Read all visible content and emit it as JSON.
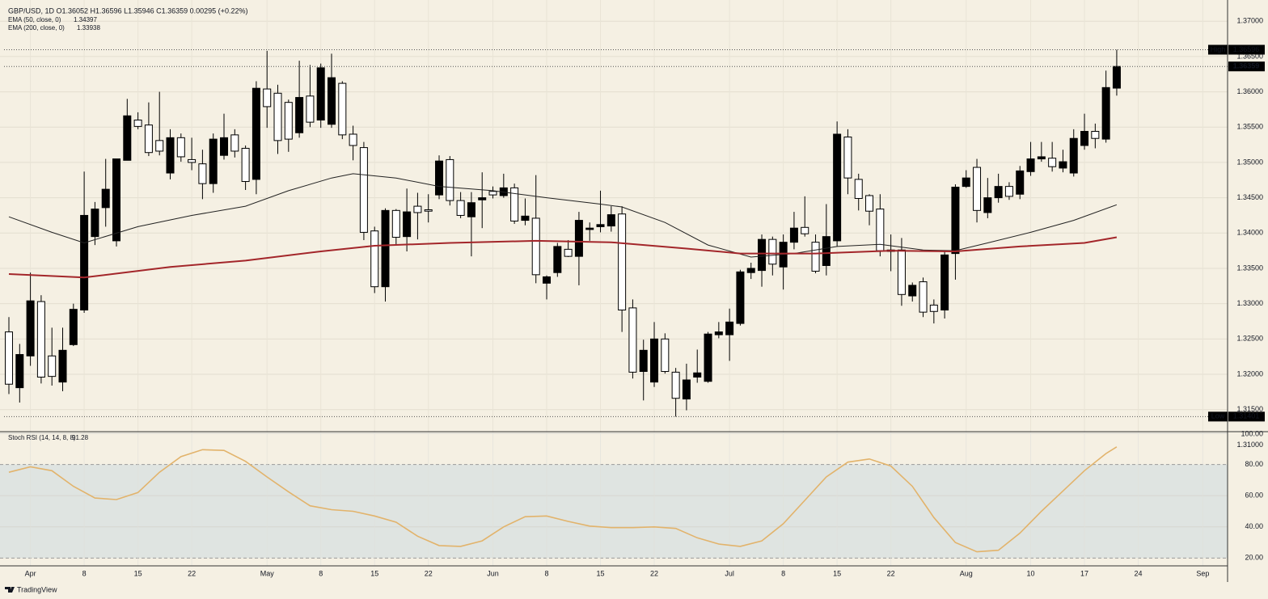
{
  "chart_data": {
    "type": "candlestick",
    "header": "GBP/USD, 1D  O1.36052  H1.36596  L1.35946  C1.36359  0.00295 (+0.22%)",
    "up_color": "#000000",
    "down_color": "#ffffff",
    "categories": [
      null,
      null,
      "Apr",
      null,
      null,
      null,
      null,
      "8",
      null,
      null,
      null,
      null,
      "15",
      null,
      null,
      null,
      null,
      "22",
      null,
      null,
      null,
      null,
      null,
      null,
      "May",
      null,
      null,
      null,
      null,
      "8",
      null,
      null,
      null,
      null,
      "15",
      null,
      null,
      null,
      null,
      "22",
      null,
      null,
      null,
      null,
      null,
      "Jun",
      null,
      null,
      null,
      null,
      "8",
      null,
      null,
      null,
      null,
      "15",
      null,
      null,
      null,
      null,
      "22",
      null,
      null,
      null,
      null,
      null,
      null,
      "Jul",
      null,
      null,
      null,
      null,
      "8",
      null,
      null,
      null,
      null,
      "15",
      null,
      null,
      null,
      null,
      "22",
      null,
      null,
      null,
      null,
      null,
      null,
      "Aug",
      null,
      null,
      null,
      null,
      null,
      "10",
      null,
      null,
      null,
      null,
      "17",
      null,
      null,
      null,
      null,
      "24",
      null,
      null,
      null,
      null,
      null,
      "Sep"
    ],
    "open": [
      1.326,
      1.3181,
      1.3226,
      1.3303,
      1.3226,
      1.3189,
      1.3242,
      1.3291,
      1.3395,
      1.3436,
      1.3389,
      1.3503,
      1.356,
      1.3553,
      1.3531,
      1.3485,
      1.3535,
      1.3504,
      1.3498,
      1.347,
      1.351,
      1.3539,
      1.352,
      1.3476,
      1.3604,
      1.3598,
      1.3585,
      1.3542,
      1.3594,
      1.356,
      1.3554,
      1.3612,
      1.354,
      1.3521,
      1.3403,
      1.3324,
      1.3432,
      1.3395,
      1.3438,
      1.3433,
      1.3454,
      1.3504,
      1.3446,
      1.3423,
      1.3447,
      1.3459,
      1.3453,
      1.3464,
      1.3418,
      1.3421,
      1.3329,
      1.3344,
      1.3377,
      1.3367,
      1.3405,
      1.3409,
      1.341,
      1.3427,
      1.3294,
      1.3204,
      1.3189,
      1.325,
      1.3203,
      1.3165,
      1.3196,
      1.319,
      1.3256,
      1.3256,
      1.3272,
      1.3344,
      1.3347,
      1.3391,
      1.3352,
      1.3387,
      1.3408,
      1.3387,
      1.3354,
      1.3389,
      1.3536,
      1.3476,
      1.3453,
      1.3434,
      1.3376,
      1.3376,
      1.3311,
      1.3331,
      1.3298,
      1.3291,
      1.3371,
      1.3466,
      1.3493,
      1.3429,
      1.345,
      1.3466,
      1.3455,
      1.3487,
      1.3505,
      1.3506,
      1.3492,
      1.3485,
      1.3524,
      1.3544,
      1.3533,
      1.36052,
      null,
      null,
      null,
      null,
      null,
      null,
      null,
      null
    ],
    "high": [
      1.3281,
      1.3243,
      1.3344,
      1.3312,
      1.3266,
      1.3266,
      1.33,
      1.3487,
      1.3444,
      1.3505,
      1.3505,
      1.359,
      1.3571,
      1.3585,
      1.36,
      1.3547,
      1.3541,
      1.3535,
      1.3518,
      1.3541,
      1.3569,
      1.3547,
      1.3524,
      1.3615,
      1.3658,
      1.361,
      1.3589,
      1.3644,
      1.3638,
      1.364,
      1.3654,
      1.3615,
      1.3552,
      1.3529,
      1.3409,
      1.3435,
      1.3434,
      1.3463,
      1.3457,
      1.3455,
      1.351,
      1.3509,
      1.3458,
      1.3458,
      1.3486,
      1.3466,
      1.3484,
      1.347,
      1.3449,
      1.3482,
      1.334,
      1.3386,
      1.339,
      1.343,
      1.3415,
      1.346,
      1.3438,
      1.3438,
      1.3306,
      1.3249,
      1.3274,
      1.3258,
      1.3209,
      1.3215,
      1.3235,
      1.326,
      1.3274,
      1.3293,
      1.3348,
      1.3358,
      1.3398,
      1.3395,
      1.3398,
      1.343,
      1.3452,
      1.3398,
      1.3441,
      1.3558,
      1.3547,
      1.3484,
      1.3455,
      1.3455,
      1.3398,
      1.3393,
      1.333,
      1.3337,
      1.3306,
      1.3375,
      1.3469,
      1.3489,
      1.3505,
      1.3478,
      1.3484,
      1.3472,
      1.3495,
      1.3529,
      1.3529,
      1.3529,
      1.3518,
      1.3547,
      1.3569,
      1.3555,
      1.363,
      1.36596,
      null,
      null,
      null,
      null,
      null,
      null,
      null,
      null
    ],
    "low": [
      1.3172,
      1.316,
      1.3212,
      1.3187,
      1.3184,
      1.3176,
      1.324,
      1.3287,
      1.3383,
      1.3409,
      1.3381,
      1.3503,
      1.3547,
      1.3509,
      1.351,
      1.3476,
      1.3501,
      1.3489,
      1.3448,
      1.3457,
      1.3504,
      1.3507,
      1.3461,
      1.3455,
      1.3549,
      1.3512,
      1.3515,
      1.3535,
      1.355,
      1.3549,
      1.3549,
      1.3533,
      1.3503,
      1.339,
      1.3315,
      1.3303,
      1.3384,
      1.3374,
      1.3391,
      1.3415,
      1.3448,
      1.3439,
      1.3421,
      1.3367,
      1.3407,
      1.3449,
      1.345,
      1.3413,
      1.3411,
      1.3329,
      1.3306,
      1.3338,
      1.3366,
      1.3326,
      1.3389,
      1.3401,
      1.3402,
      1.326,
      1.3194,
      1.3163,
      1.3182,
      1.3201,
      1.314,
      1.3149,
      1.3188,
      1.3188,
      1.3251,
      1.3219,
      1.3269,
      1.3335,
      1.3324,
      1.334,
      1.332,
      1.3377,
      1.3395,
      1.3343,
      1.334,
      1.3381,
      1.3455,
      1.3432,
      1.3411,
      1.3367,
      1.3346,
      1.3297,
      1.3303,
      1.3281,
      1.3272,
      1.3279,
      1.3334,
      1.3464,
      1.3415,
      1.3421,
      1.3443,
      1.3447,
      1.3448,
      1.3481,
      1.3501,
      1.3487,
      1.3486,
      1.348,
      1.3518,
      1.352,
      1.3528,
      1.35946,
      null,
      null,
      null,
      null,
      null,
      null,
      null,
      null
    ],
    "close": [
      1.3186,
      1.3228,
      1.3304,
      1.3196,
      1.3197,
      1.3234,
      1.3292,
      1.3425,
      1.3434,
      1.3462,
      1.3505,
      1.3566,
      1.3551,
      1.3514,
      1.3516,
      1.3535,
      1.3508,
      1.35,
      1.347,
      1.3533,
      1.3535,
      1.3516,
      1.3473,
      1.3605,
      1.3579,
      1.3531,
      1.3533,
      1.3592,
      1.3557,
      1.3634,
      1.362,
      1.3539,
      1.3524,
      1.3401,
      1.3324,
      1.3432,
      1.3394,
      1.343,
      1.3429,
      1.3431,
      1.3502,
      1.3446,
      1.3425,
      1.3443,
      1.345,
      1.3454,
      1.3464,
      1.3417,
      1.3424,
      1.3341,
      1.3338,
      1.3381,
      1.3367,
      1.3418,
      1.3407,
      1.3412,
      1.3426,
      1.3291,
      1.3203,
      1.3234,
      1.325,
      1.3204,
      1.3166,
      1.3192,
      1.3202,
      1.3257,
      1.326,
      1.3274,
      1.3345,
      1.335,
      1.3391,
      1.3356,
      1.3387,
      1.3407,
      1.3399,
      1.3346,
      1.3395,
      1.354,
      1.3478,
      1.3449,
      1.3431,
      1.3375,
      1.3374,
      1.3313,
      1.3326,
      1.3288,
      1.3289,
      1.3369,
      1.3465,
      1.3478,
      1.3432,
      1.345,
      1.3466,
      1.3452,
      1.3488,
      1.3505,
      1.3508,
      1.3494,
      1.3501,
      1.3534,
      1.3544,
      1.3534,
      1.3606,
      1.36359,
      null,
      null,
      null,
      null,
      null,
      null,
      null,
      null
    ],
    "ylim": [
      1.3097,
      1.373
    ],
    "yticks": [
      {
        "value": 1.31,
        "label": "1.31000"
      },
      {
        "value": 1.315,
        "label": "1.31500"
      },
      {
        "value": 1.32,
        "label": "1.32000"
      },
      {
        "value": 1.325,
        "label": "1.32500"
      },
      {
        "value": 1.33,
        "label": "1.33000"
      },
      {
        "value": 1.335,
        "label": "1.33500"
      },
      {
        "value": 1.34,
        "label": "1.34000"
      },
      {
        "value": 1.345,
        "label": "1.34500"
      },
      {
        "value": 1.35,
        "label": "1.35000"
      },
      {
        "value": 1.355,
        "label": "1.35500"
      },
      {
        "value": 1.36,
        "label": "1.36000"
      },
      {
        "value": 1.365,
        "label": "1.36500"
      },
      {
        "value": 1.37,
        "label": "1.37000"
      }
    ],
    "grid": true,
    "overlays": [
      {
        "name": "EMA (50, close, 0)",
        "last": 1.34397,
        "color": "#222222",
        "x": [
          0,
          4,
          7,
          12,
          17,
          22,
          26,
          30,
          32,
          36,
          40,
          45,
          50,
          55,
          57,
          61,
          65,
          69,
          73,
          77,
          81,
          85,
          88,
          91,
          95,
          99,
          103
        ],
        "values": [
          1.3423,
          1.3401,
          1.3386,
          1.3409,
          1.3425,
          1.3438,
          1.346,
          1.3478,
          1.3484,
          1.3478,
          1.3466,
          1.346,
          1.345,
          1.3441,
          1.3437,
          1.3415,
          1.3383,
          1.3366,
          1.3371,
          1.3381,
          1.3384,
          1.3376,
          1.3375,
          1.3386,
          1.3401,
          1.3418,
          1.344
        ]
      },
      {
        "name": "EMA (200, close, 0)",
        "last": 1.33938,
        "color": "#a3262a",
        "x": [
          0,
          7,
          15,
          22,
          29,
          34,
          41,
          49,
          56,
          63,
          68,
          75,
          82,
          88,
          94,
          100,
          103
        ],
        "values": [
          1.3342,
          1.3337,
          1.3352,
          1.3361,
          1.3374,
          1.3382,
          1.3386,
          1.3389,
          1.3387,
          1.3378,
          1.3371,
          1.3371,
          1.3375,
          1.3374,
          1.3381,
          1.3386,
          1.3394
        ]
      }
    ],
    "levels": [
      {
        "label": "High",
        "value": 1.36596
      },
      {
        "label": "Low",
        "value": 1.31401
      }
    ],
    "last_price": 1.36359,
    "indicator": {
      "name": "Stoch RSI (14, 14, 8, 8)",
      "last": 91.28,
      "color": "#e2b36b",
      "ylim": [
        15,
        100
      ],
      "yticks": [
        {
          "value": 100,
          "label": "100.00"
        },
        {
          "value": 80,
          "label": "80.00"
        },
        {
          "value": 60,
          "label": "60.00"
        },
        {
          "value": 40,
          "label": "40.00"
        },
        {
          "value": 20,
          "label": "20.00"
        }
      ],
      "band": [
        20,
        80
      ],
      "band_color": "#dfe4e1",
      "x": [
        0,
        2,
        4,
        6,
        8,
        10,
        12,
        14,
        16,
        18,
        20,
        22,
        24,
        26,
        28,
        30,
        32,
        34,
        36,
        38,
        40,
        42,
        44,
        46,
        48,
        50,
        52,
        54,
        56,
        58,
        60,
        62,
        64,
        66,
        68,
        70,
        72,
        74,
        76,
        78,
        80,
        82,
        84,
        86,
        88,
        90,
        92,
        94,
        96,
        98,
        100,
        102,
        103
      ],
      "values": [
        75,
        78.5,
        76,
        66,
        58.5,
        57.5,
        62,
        75,
        85,
        89.5,
        89,
        82,
        72,
        62.5,
        53.5,
        51,
        50,
        47,
        43,
        34,
        28,
        27.5,
        31,
        40,
        46.5,
        47,
        43.5,
        40.5,
        39.5,
        39.5,
        40,
        39,
        33,
        29,
        27.5,
        31,
        42,
        57,
        72,
        81.5,
        83.5,
        79,
        66,
        46,
        30,
        24,
        25,
        36,
        50,
        63,
        76,
        87,
        91.28
      ]
    },
    "watermark": "TradingView"
  }
}
